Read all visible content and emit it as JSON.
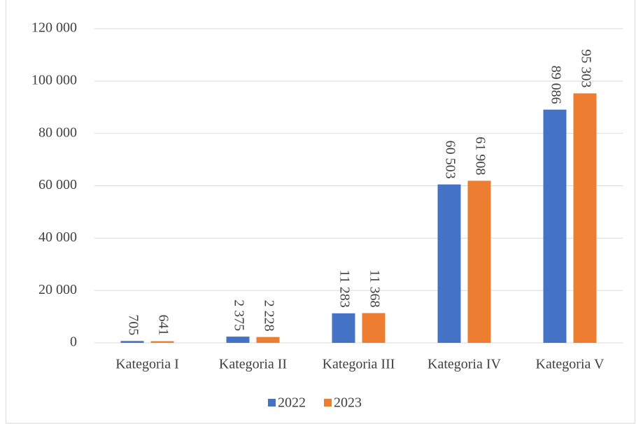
{
  "chart_data": {
    "type": "bar",
    "categories": [
      "Kategoria I",
      "Kategoria II",
      "Kategoria III",
      "Kategoria IV",
      "Kategoria V"
    ],
    "series": [
      {
        "name": "2022",
        "color": "#4472c4",
        "values": [
          705,
          2375,
          11283,
          60503,
          89086
        ],
        "value_labels": [
          "705",
          "2 375",
          "11 283",
          "60 503",
          "89 086"
        ]
      },
      {
        "name": "2023",
        "color": "#ed7d31",
        "values": [
          641,
          2228,
          11368,
          61908,
          95303
        ],
        "value_labels": [
          "641",
          "2 228",
          "11 368",
          "61 908",
          "95 303"
        ]
      }
    ],
    "ylim": [
      0,
      120000
    ],
    "yticks": [
      {
        "value": 0,
        "label": "0"
      },
      {
        "value": 20000,
        "label": "20 000"
      },
      {
        "value": 40000,
        "label": "40 000"
      },
      {
        "value": 60000,
        "label": "60 000"
      },
      {
        "value": 80000,
        "label": "80 000"
      },
      {
        "value": 100000,
        "label": "100 000"
      },
      {
        "value": 120000,
        "label": "120 000"
      }
    ],
    "grid": true,
    "legend": "bottom"
  }
}
